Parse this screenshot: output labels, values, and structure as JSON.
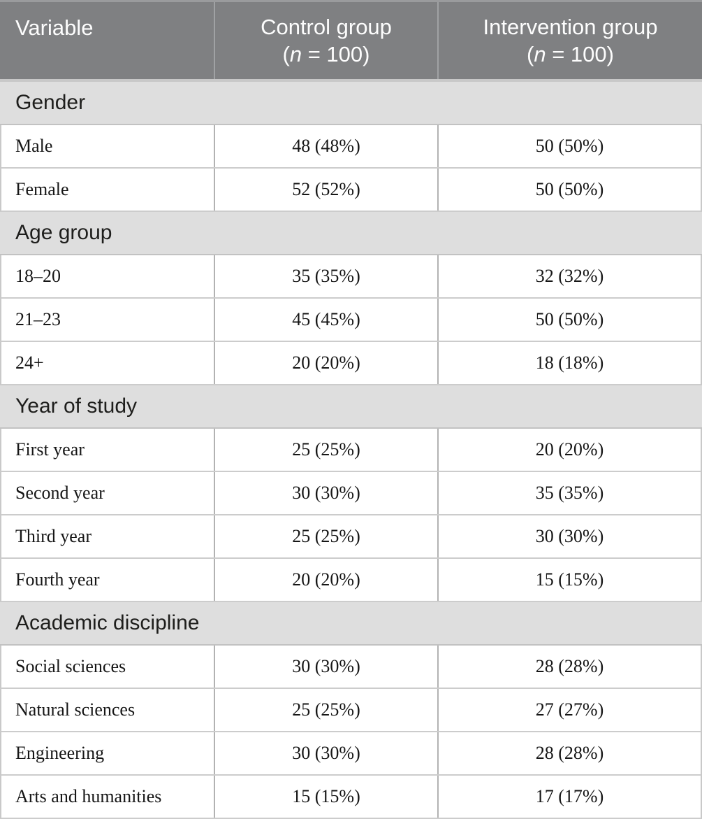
{
  "table": {
    "header": {
      "columns": [
        {
          "label": "Variable"
        },
        {
          "label": "Control group",
          "sub_prefix": "(",
          "sub_italic": "n",
          "sub_suffix": " = 100)"
        },
        {
          "label": "Intervention group",
          "sub_prefix": "(",
          "sub_italic": "n",
          "sub_suffix": " = 100)"
        }
      ]
    },
    "colors": {
      "header_bg": "#7f8082",
      "header_text": "#fdfdfd",
      "section_bg": "#dedede",
      "body_text": "#161616",
      "grid_line": "#cccccc"
    },
    "sections": [
      {
        "label": "Gender",
        "rows": [
          {
            "variable": "Male",
            "control": "48 (48%)",
            "intervention": "50 (50%)"
          },
          {
            "variable": "Female",
            "control": "52 (52%)",
            "intervention": "50 (50%)"
          }
        ]
      },
      {
        "label": "Age group",
        "rows": [
          {
            "variable": "18–20",
            "control": "35 (35%)",
            "intervention": "32 (32%)"
          },
          {
            "variable": "21–23",
            "control": "45 (45%)",
            "intervention": "50 (50%)"
          },
          {
            "variable": "24+",
            "control": "20 (20%)",
            "intervention": "18 (18%)"
          }
        ]
      },
      {
        "label": "Year of study",
        "rows": [
          {
            "variable": "First year",
            "control": "25 (25%)",
            "intervention": "20 (20%)"
          },
          {
            "variable": "Second year",
            "control": "30 (30%)",
            "intervention": "35 (35%)"
          },
          {
            "variable": "Third year",
            "control": "25 (25%)",
            "intervention": "30 (30%)"
          },
          {
            "variable": "Fourth year",
            "control": "20 (20%)",
            "intervention": "15 (15%)"
          }
        ]
      },
      {
        "label": "Academic discipline",
        "rows": [
          {
            "variable": "Social sciences",
            "control": "30 (30%)",
            "intervention": "28 (28%)"
          },
          {
            "variable": "Natural sciences",
            "control": "25 (25%)",
            "intervention": "27 (27%)"
          },
          {
            "variable": "Engineering",
            "control": "30 (30%)",
            "intervention": "28 (28%)"
          },
          {
            "variable": "Arts and humanities",
            "control": "15 (15%)",
            "intervention": "17 (17%)"
          }
        ]
      }
    ]
  }
}
